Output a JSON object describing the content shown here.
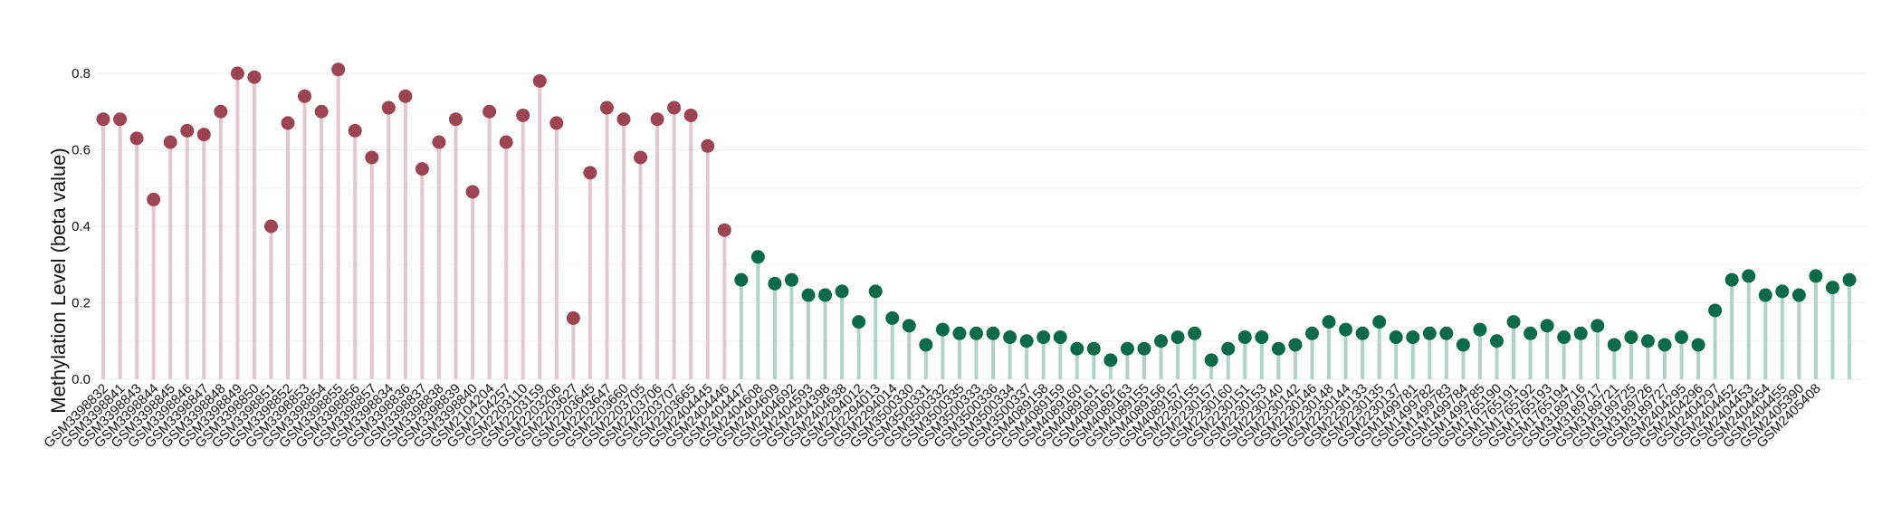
{
  "chart_data": {
    "type": "lollipop",
    "ylabel": "Methylation Level (beta value)",
    "ylim": [
      0,
      0.82
    ],
    "yticks": [
      0.0,
      0.2,
      0.4,
      0.6,
      0.8
    ],
    "ytick_labels": [
      "0.0",
      "0.2",
      "0.4",
      "0.6",
      "0.8"
    ],
    "grid": true,
    "colors": {
      "group1_dot": "#9c4452",
      "group1_stem": "#e2c7cd",
      "group2_dot": "#0b6b48",
      "group2_stem": "#b0d3c6",
      "grid": "#ececec"
    },
    "categories": [
      "GSM3398832",
      "GSM3398841",
      "GSM3398843",
      "GSM3398844",
      "GSM3398845",
      "GSM3398846",
      "GSM3398847",
      "GSM3398848",
      "GSM3398849",
      "GSM3398850",
      "GSM3398851",
      "GSM3398852",
      "GSM3398853",
      "GSM3398854",
      "GSM3398855",
      "GSM3398856",
      "GSM3398857",
      "GSM3398834",
      "GSM3398836",
      "GSM3398837",
      "GSM3398838",
      "GSM3398839",
      "GSM3398840",
      "GSM2104204",
      "GSM2104257",
      "GSM2203110",
      "GSM2203159",
      "GSM2203206",
      "GSM2203627",
      "GSM2203645",
      "GSM2203647",
      "GSM2203660",
      "GSM2203705",
      "GSM2203706",
      "GSM2203707",
      "GSM2203665",
      "GSM2404445",
      "GSM2404446",
      "GSM2404447",
      "GSM2404608",
      "GSM2404609",
      "GSM2404692",
      "GSM2404593",
      "GSM2404398",
      "GSM2404638",
      "GSM2294012",
      "GSM2294013",
      "GSM2294014",
      "GSM3500330",
      "GSM3500331",
      "GSM3500332",
      "GSM3500335",
      "GSM3500333",
      "GSM3500336",
      "GSM3500334",
      "GSM3500337",
      "GSM4089158",
      "GSM4089159",
      "GSM4089160",
      "GSM4089161",
      "GSM4089162",
      "GSM4089163",
      "GSM4089155",
      "GSM4089156",
      "GSM4089157",
      "GSM2230155",
      "GSM2230157",
      "GSM2230160",
      "GSM2230151",
      "GSM2230153",
      "GSM2230140",
      "GSM2230142",
      "GSM2230146",
      "GSM2230148",
      "GSM2230144",
      "GSM2230133",
      "GSM2230135",
      "GSM2230137",
      "GSM1499781",
      "GSM1499782",
      "GSM1499783",
      "GSM1499784",
      "GSM1499785",
      "GSM1765190",
      "GSM1765191",
      "GSM1765192",
      "GSM1765193",
      "GSM1765194",
      "GSM3189716",
      "GSM3189717",
      "GSM3189721",
      "GSM3189725",
      "GSM3189726",
      "GSM3189727",
      "GSM2404295",
      "GSM2404296",
      "GSM2404297",
      "GSM2404452",
      "GSM2404453",
      "GSM2404454",
      "GSM2404455",
      "GSM2405390",
      "GSM2405408"
    ],
    "groups": [
      {
        "values": [
          0.68,
          0.68,
          0.63,
          0.47,
          0.62,
          0.65,
          0.64,
          0.7,
          0.8,
          0.79,
          0.4,
          0.67,
          0.74,
          0.7,
          0.81,
          0.65,
          0.58,
          0.71,
          0.74,
          0.55,
          0.62,
          0.68,
          0.49,
          0.7,
          0.62,
          0.69,
          0.78,
          0.67,
          0.16,
          0.54,
          0.71,
          0.68,
          0.58,
          0.68,
          0.71,
          0.69,
          0.61,
          0.39
        ]
      },
      {
        "values": [
          0.26,
          0.32,
          0.25,
          0.26,
          0.22,
          0.22,
          0.23,
          0.15,
          0.23,
          0.16,
          0.14,
          0.09,
          0.13,
          0.12,
          0.12,
          0.12,
          0.11,
          0.1,
          0.11,
          0.11,
          0.08,
          0.08,
          0.05,
          0.08,
          0.08,
          0.1,
          0.11,
          0.12,
          0.05,
          0.08,
          0.11,
          0.11,
          0.08,
          0.09,
          0.12,
          0.15,
          0.13,
          0.12,
          0.15,
          0.11,
          0.11,
          0.12,
          0.12,
          0.09,
          0.13,
          0.1,
          0.15,
          0.12,
          0.14,
          0.11,
          0.12,
          0.14,
          0.09,
          0.11,
          0.1,
          0.09,
          0.11,
          0.09,
          0.18,
          0.26,
          0.27,
          0.22,
          0.23,
          0.22,
          0.27,
          0.24,
          0.26
        ]
      }
    ]
  }
}
